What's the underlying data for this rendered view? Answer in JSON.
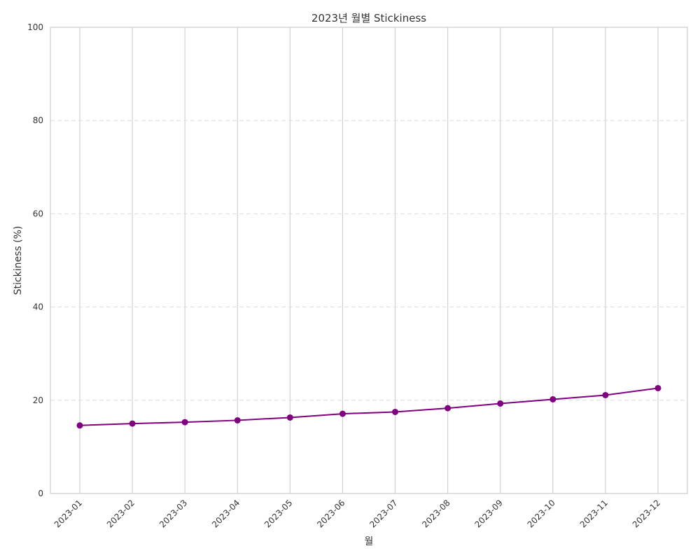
{
  "chart_data": {
    "type": "line",
    "title": "2023년 월별 Stickiness",
    "xlabel": "월",
    "ylabel": "Stickiness (%)",
    "categories": [
      "2023-01",
      "2023-02",
      "2023-03",
      "2023-04",
      "2023-05",
      "2023-06",
      "2023-07",
      "2023-08",
      "2023-09",
      "2023-10",
      "2023-11",
      "2023-12"
    ],
    "series": [
      {
        "values": [
          14.6,
          15.0,
          15.3,
          15.7,
          16.3,
          17.1,
          17.5,
          18.3,
          19.3,
          20.2,
          21.1,
          22.6
        ]
      }
    ],
    "ylim": [
      0,
      100
    ],
    "yticks": [
      0,
      20,
      40,
      60,
      80,
      100
    ],
    "grid": {
      "x": "solid",
      "y": "dashed"
    },
    "marker": "circle",
    "colors": {
      "series": "#800080",
      "grid": "#d0d0d0",
      "frame": "#cccccc",
      "text": "#333333"
    }
  }
}
